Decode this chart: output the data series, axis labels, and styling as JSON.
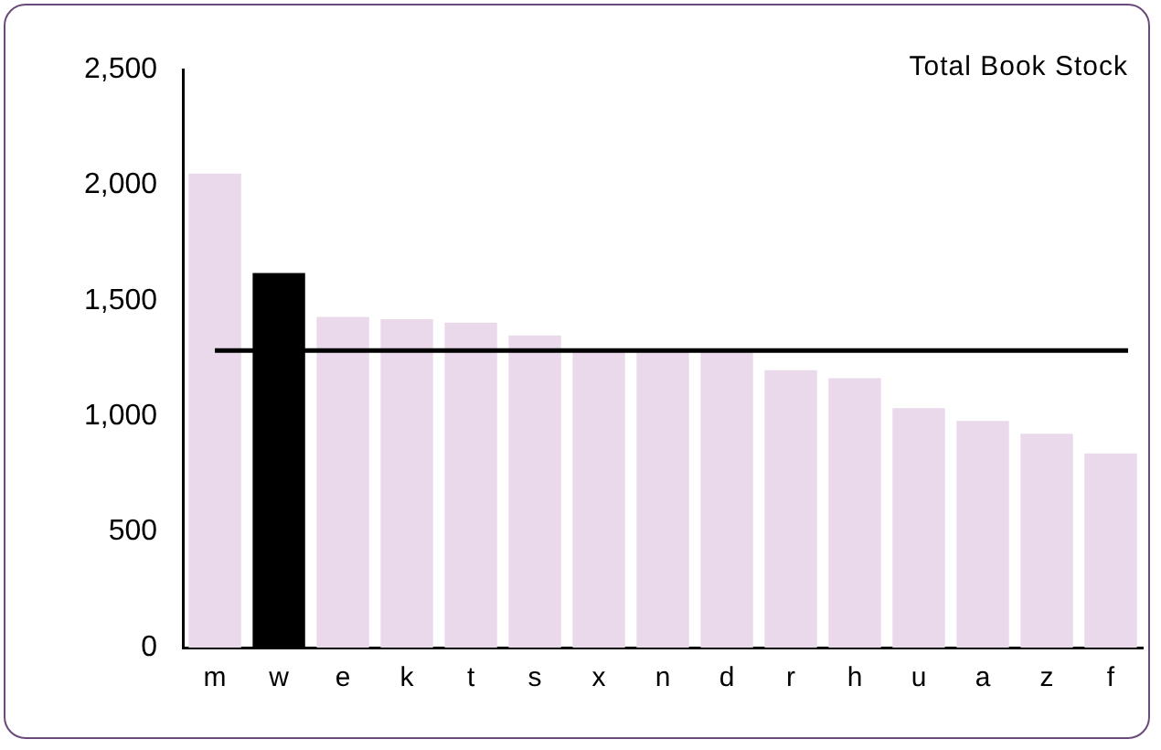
{
  "chart_data": {
    "type": "bar",
    "title": "Total Book Stock",
    "categories": [
      "m",
      "w",
      "e",
      "k",
      "t",
      "s",
      "x",
      "n",
      "d",
      "r",
      "h",
      "u",
      "a",
      "z",
      "f"
    ],
    "values": [
      2050,
      1620,
      1430,
      1420,
      1405,
      1350,
      1280,
      1280,
      1280,
      1200,
      1165,
      1035,
      980,
      925,
      840
    ],
    "colors": [
      "#e9d9eb",
      "#000000",
      "#e9d9eb",
      "#e9d9eb",
      "#e9d9eb",
      "#e9d9eb",
      "#e9d9eb",
      "#e9d9eb",
      "#e9d9eb",
      "#e9d9eb",
      "#e9d9eb",
      "#e9d9eb",
      "#e9d9eb",
      "#e9d9eb",
      "#e9d9eb"
    ],
    "ylim": [
      0,
      2500
    ],
    "yticks": [
      0,
      500,
      {
        "value": 1000,
        "label": "1,000"
      },
      {
        "value": 1500,
        "label": "1,500"
      },
      {
        "value": 2000,
        "label": "2,000"
      },
      {
        "value": 2500,
        "label": "2,500"
      }
    ],
    "grid": false,
    "legend": false,
    "ref_lines": [
      {
        "axis": "y",
        "value": 1285,
        "color": "#000000"
      }
    ]
  }
}
